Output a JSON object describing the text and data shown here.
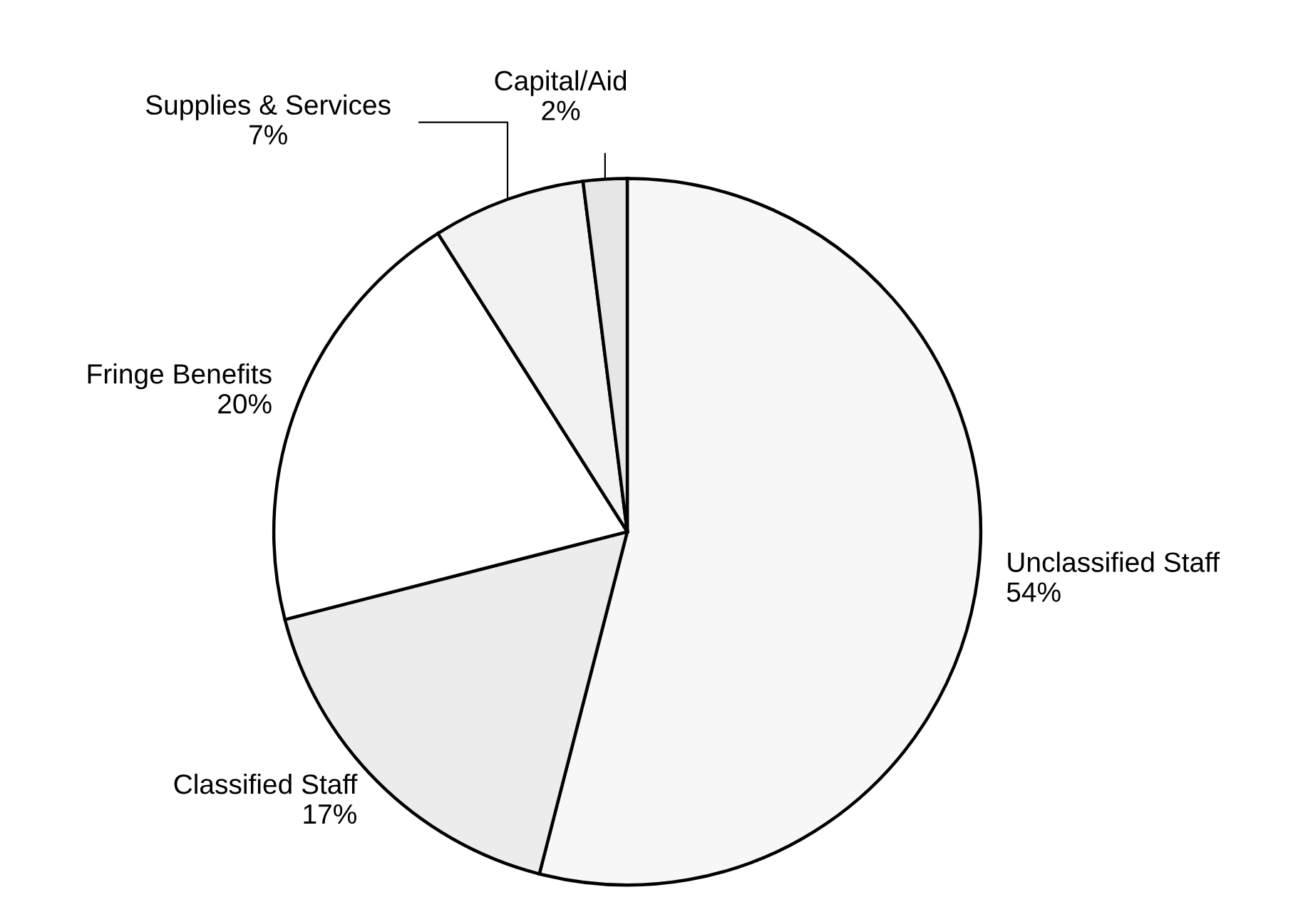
{
  "chart_data": {
    "type": "pie",
    "categories": [
      "Unclassified Staff",
      "Classified Staff",
      "Fringe Benefits",
      "Supplies & Services",
      "Capital/Aid"
    ],
    "values": [
      54,
      17,
      20,
      7,
      2
    ],
    "value_labels": [
      "54%",
      "17%",
      "20%",
      "7%",
      "2%"
    ],
    "colors": [
      "#f7f7f7",
      "#ececec",
      "#ffffff",
      "#f2f2f2",
      "#e6e6e6"
    ]
  }
}
